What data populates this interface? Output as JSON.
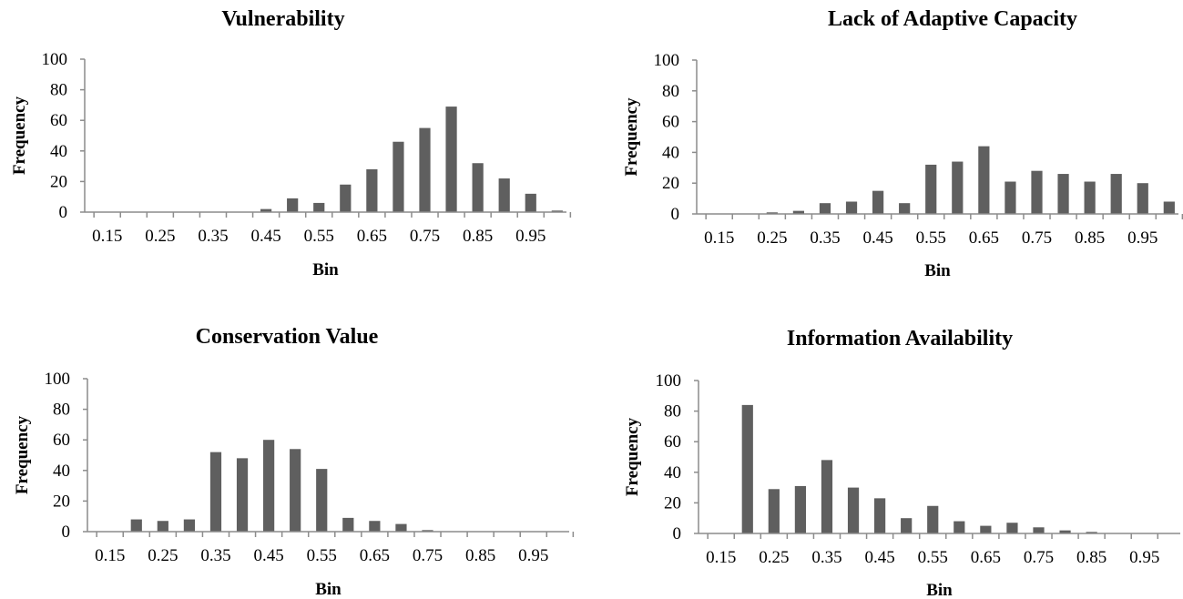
{
  "chart_data": [
    {
      "type": "bar",
      "title": "Vulnerability",
      "xlabel": "Bin",
      "ylabel": "Frequency",
      "ylim": [
        0,
        100
      ],
      "yticks": [
        "0",
        "20",
        "40",
        "60",
        "80",
        "100"
      ],
      "xticks": [
        "0.15",
        "0.25",
        "0.35",
        "0.45",
        "0.55",
        "0.65",
        "0.75",
        "0.85",
        "0.95"
      ],
      "categories": [
        "0.15",
        "0.2",
        "0.25",
        "0.3",
        "0.35",
        "0.4",
        "0.45",
        "0.5",
        "0.55",
        "0.6",
        "0.65",
        "0.7",
        "0.75",
        "0.8",
        "0.85",
        "0.9",
        "0.95",
        "1"
      ],
      "values": [
        0,
        0,
        0,
        0,
        0,
        0,
        2,
        9,
        6,
        18,
        28,
        46,
        55,
        69,
        32,
        22,
        12,
        1
      ],
      "grid": false
    },
    {
      "type": "bar",
      "title": "Lack of Adaptive Capacity",
      "xlabel": "Bin",
      "ylabel": "Frequency",
      "ylim": [
        0,
        100
      ],
      "yticks": [
        "0",
        "20",
        "40",
        "60",
        "80",
        "100"
      ],
      "xticks": [
        "0.15",
        "0.25",
        "0.35",
        "0.45",
        "0.55",
        "0.65",
        "0.75",
        "0.85",
        "0.95"
      ],
      "categories": [
        "0.15",
        "0.2",
        "0.25",
        "0.3",
        "0.35",
        "0.4",
        "0.45",
        "0.5",
        "0.55",
        "0.6",
        "0.65",
        "0.7",
        "0.75",
        "0.8",
        "0.85",
        "0.9",
        "0.95",
        "1"
      ],
      "values": [
        0,
        0,
        1,
        2,
        7,
        8,
        15,
        7,
        32,
        34,
        44,
        21,
        28,
        26,
        21,
        26,
        20,
        8
      ],
      "grid": false
    },
    {
      "type": "bar",
      "title": "Conservation Value",
      "xlabel": "Bin",
      "ylabel": "Frequency",
      "ylim": [
        0,
        100
      ],
      "yticks": [
        "0",
        "20",
        "40",
        "60",
        "80",
        "100"
      ],
      "xticks": [
        "0.15",
        "0.25",
        "0.35",
        "0.45",
        "0.55",
        "0.65",
        "0.75",
        "0.85",
        "0.95"
      ],
      "categories": [
        "0.15",
        "0.2",
        "0.25",
        "0.3",
        "0.35",
        "0.4",
        "0.45",
        "0.5",
        "0.55",
        "0.6",
        "0.65",
        "0.7",
        "0.75",
        "0.8",
        "0.85",
        "0.9",
        "0.95",
        "1"
      ],
      "values": [
        0,
        8,
        7,
        8,
        52,
        48,
        60,
        54,
        41,
        9,
        7,
        5,
        1,
        0,
        0,
        0,
        0,
        0
      ],
      "grid": false
    },
    {
      "type": "bar",
      "title": "Information Availability",
      "xlabel": "Bin",
      "ylabel": "Frequency",
      "ylim": [
        0,
        100
      ],
      "yticks": [
        "0",
        "20",
        "40",
        "60",
        "80",
        "100"
      ],
      "xticks": [
        "0.15",
        "0.25",
        "0.35",
        "0.45",
        "0.55",
        "0.65",
        "0.75",
        "0.85",
        "0.95"
      ],
      "categories": [
        "0.15",
        "0.2",
        "0.25",
        "0.3",
        "0.35",
        "0.4",
        "0.45",
        "0.5",
        "0.55",
        "0.6",
        "0.65",
        "0.7",
        "0.75",
        "0.8",
        "0.85",
        "0.9",
        "0.95",
        "1"
      ],
      "values": [
        0,
        84,
        29,
        31,
        48,
        30,
        23,
        10,
        18,
        8,
        5,
        7,
        4,
        2,
        1,
        0,
        0,
        0
      ],
      "grid": false
    }
  ]
}
